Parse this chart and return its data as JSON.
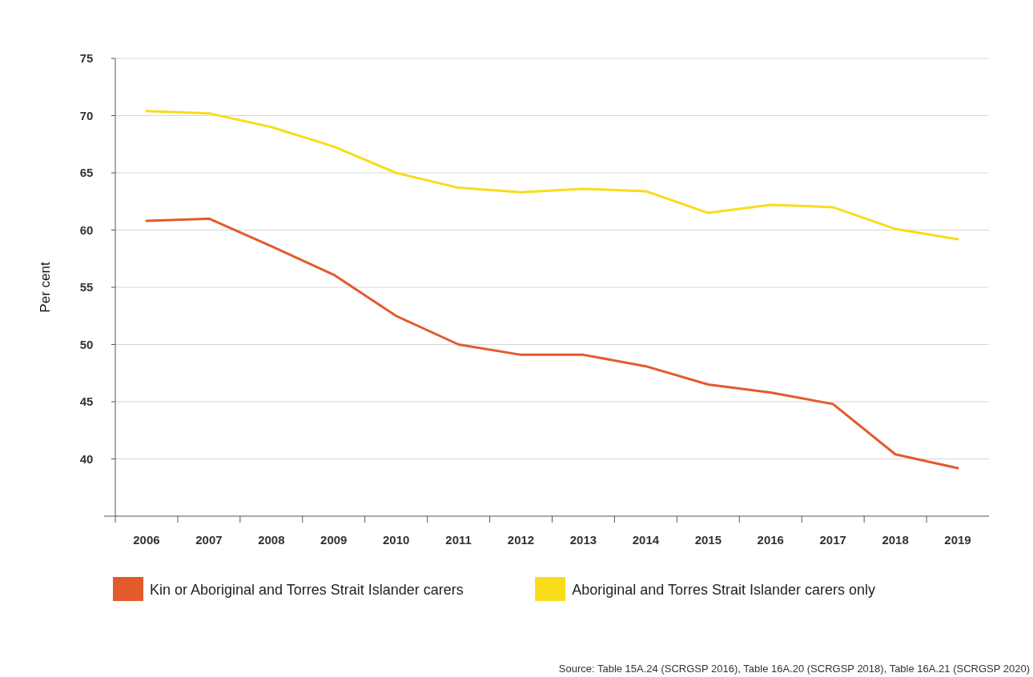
{
  "chart_data": {
    "type": "line",
    "ylabel": "Per cent",
    "categories": [
      "2006",
      "2007",
      "2008",
      "2009",
      "2010",
      "2011",
      "2012",
      "2013",
      "2014",
      "2015",
      "2016",
      "2017",
      "2018",
      "2019"
    ],
    "series": [
      {
        "name": "Kin or Aboriginal and Torres Strait Islander carers",
        "color": "#e35a2b",
        "values": [
          60.8,
          61.0,
          58.6,
          56.1,
          52.5,
          50.0,
          49.1,
          49.1,
          48.1,
          46.5,
          45.8,
          44.8,
          40.4,
          39.2
        ]
      },
      {
        "name": "Aboriginal and Torres Strait Islander carers only",
        "color": "#f8dc1c",
        "values": [
          70.4,
          70.2,
          69.0,
          67.3,
          65.0,
          63.7,
          63.3,
          63.6,
          63.4,
          61.5,
          62.2,
          62.0,
          60.1,
          59.2
        ]
      }
    ],
    "ylim": [
      35,
      75
    ],
    "yticks": [
      40,
      45,
      50,
      55,
      60,
      65,
      70,
      75
    ],
    "grid": "y",
    "legend": "bottom left",
    "line_style": "solid",
    "annotations": [
      "Source: Table 15A.24 (SCRGSP 2016), Table 16A.20 (SCRGSP 2018), Table 16A.21 (SCRGSP 2020)"
    ]
  }
}
